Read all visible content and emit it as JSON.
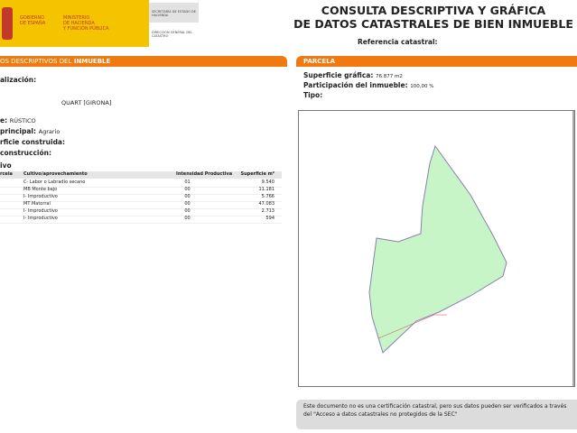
{
  "header": {
    "gov1": "GOBIERNO",
    "gov2": "DE ESPAÑA",
    "min1": "MINISTERIO",
    "min2": "DE HACIENDA",
    "min3": "Y FUNCIÓN PÚBLICA",
    "sec": "SECRETARÍA DE ESTADO DE HACIENDA",
    "dir": "DIRECCIÓN GENERAL DEL CATASTRO",
    "title1": "CONSULTA DESCRIPTIVA Y GRÁFICA",
    "title2": "DE DATOS CATASTRALES DE BIEN INMUEBLE",
    "ref_label": "Referencia catastral:"
  },
  "left": {
    "section_a": "OS DESCRIPTIVOS DEL",
    "section_b": "INMUEBLE",
    "localizacion": "alización:",
    "municipio": "QUART [GIRONA]",
    "clase_label": "e:",
    "clase": "RÚSTICO",
    "uso_label": "principal:",
    "uso": "Agrario",
    "sup_label": "rficie construida:",
    "anio_label": "construcción:",
    "cultivo_title": "ivo",
    "table": {
      "headers": [
        "rcela",
        "Cultivo/aprovechamiento",
        "Intensidad Productiva",
        "Superficie m²"
      ],
      "rows": [
        [
          "",
          "C- Labor o Labradío secano",
          "01",
          "9.540"
        ],
        [
          "",
          "MB Monte bajo",
          "00",
          "11.181"
        ],
        [
          "",
          "I- Improductivo",
          "00",
          "5.766"
        ],
        [
          "",
          "MT Matorral",
          "00",
          "47.083"
        ],
        [
          "",
          "I- Improductivo",
          "00",
          "2.713"
        ],
        [
          "",
          "I- Improductivo",
          "00",
          "594"
        ]
      ]
    }
  },
  "right": {
    "section": "PARCELA",
    "sup_label": "Superficie gráfica:",
    "sup": "76.877 m2",
    "part_label": "Participación del inmueble:",
    "part": "100,00 %",
    "tipo_label": "Tipo:",
    "parcel_fill": "#c8f5c8",
    "parcel_stroke": "#8a7fb0",
    "note": "Este documento no es una certificación catastral, pero sus datos pueden ser verificados a través del \"Acceso a datos catastrales no protegidos de la SEC\""
  }
}
